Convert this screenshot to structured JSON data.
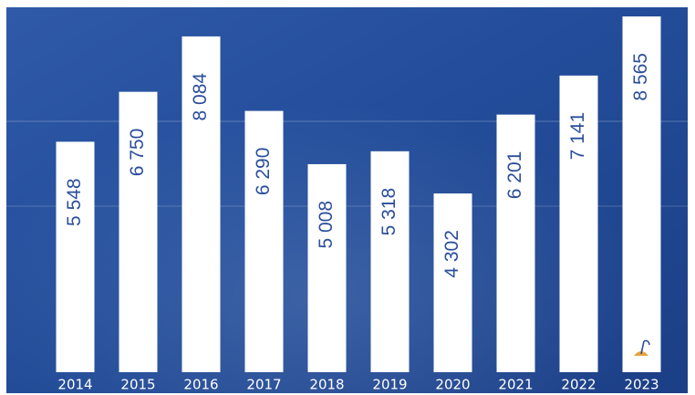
{
  "chart_data": {
    "type": "bar",
    "categories": [
      "2014",
      "2015",
      "2016",
      "2017",
      "2018",
      "2019",
      "2020",
      "2021",
      "2022",
      "2023"
    ],
    "values": [
      5548,
      6750,
      8084,
      6290,
      5008,
      5318,
      4302,
      6201,
      7141,
      8565
    ],
    "value_labels": [
      "5 548",
      "6 750",
      "8 084",
      "6 290",
      "5 008",
      "5 318",
      "4 302",
      "6 201",
      "7 141",
      "8 565"
    ],
    "color": "#ffffff",
    "label_color": "#2b4e9a"
  }
}
